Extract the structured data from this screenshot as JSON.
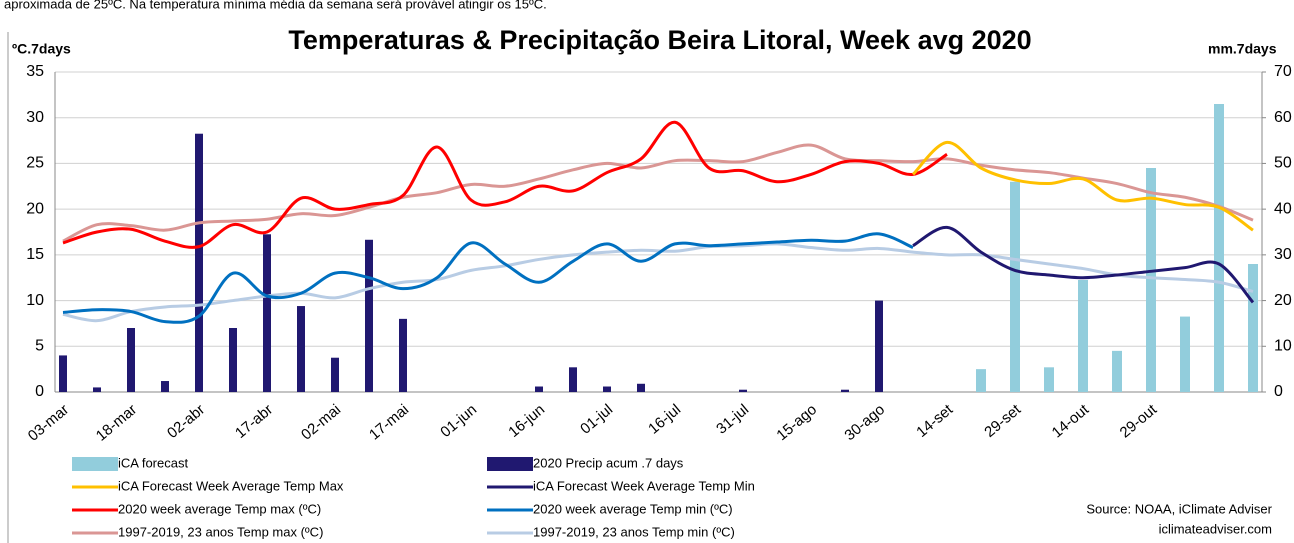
{
  "top_note": "aproximada de 25ºC. Na temperatura mínima média da semana será provável atingir os 15ºC.",
  "chart_data": {
    "type": "combo",
    "title": "Temperaturas & Precipitação Beira Litoral, Week avg 2020",
    "y_label": "ºC.7days",
    "y2_label": "mm.7days",
    "source": "Source: NOAA, iClimate Adviser",
    "website": "iclimateadviser.com",
    "categories": [
      "03-mar",
      null,
      "18-mar",
      null,
      "02-abr",
      null,
      "17-abr",
      null,
      "02-mai",
      null,
      "17-mai",
      null,
      "01-jun",
      null,
      "16-jun",
      null,
      "01-jul",
      null,
      "16-jul",
      null,
      "31-jul",
      null,
      "15-ago",
      null,
      "30-ago",
      null,
      "14-set",
      null,
      "29-set",
      null,
      "14-out",
      null,
      "29-out",
      null,
      null,
      null
    ],
    "ylim": [
      0,
      35
    ],
    "yticks": [
      0,
      5,
      10,
      15,
      20,
      25,
      30,
      35
    ],
    "y2lim": [
      0,
      70
    ],
    "y2ticks": [
      0,
      10,
      20,
      30,
      40,
      50,
      60,
      70
    ],
    "grid": true,
    "series": [
      {
        "name": "iCA forecast",
        "type": "bar",
        "axis": "y2",
        "color": "#92cddc",
        "values": [
          null,
          null,
          null,
          null,
          null,
          null,
          null,
          null,
          null,
          null,
          null,
          null,
          null,
          null,
          null,
          null,
          null,
          null,
          null,
          null,
          null,
          null,
          null,
          null,
          null,
          null,
          null,
          5,
          46,
          5.4,
          24.5,
          9,
          49,
          16.5,
          63,
          28
        ]
      },
      {
        "name": "2020 Precip acum .7 days",
        "type": "bar",
        "axis": "y2",
        "color": "#201870",
        "values": [
          8,
          1,
          14,
          2.4,
          56.5,
          14,
          34.5,
          18.8,
          7.5,
          33.3,
          16,
          null,
          null,
          null,
          1.2,
          5.4,
          1.2,
          1.8,
          null,
          null,
          0.5,
          null,
          null,
          0.5,
          20,
          null,
          null,
          null,
          null,
          null,
          null,
          null,
          null,
          null,
          null,
          null
        ]
      },
      {
        "name": "iCA Forecast Week Average Temp Max",
        "type": "line",
        "color": "#ffc000",
        "values": [
          null,
          null,
          null,
          null,
          null,
          null,
          null,
          null,
          null,
          null,
          null,
          null,
          null,
          null,
          null,
          null,
          null,
          null,
          null,
          null,
          null,
          null,
          null,
          null,
          null,
          23.8,
          27.3,
          24.5,
          23.2,
          22.8,
          23.3,
          21,
          21.2,
          20.5,
          20.2,
          17.7
        ]
      },
      {
        "name": "iCA Forecast Week Average Temp Min",
        "type": "line",
        "color": "#201870",
        "values": [
          null,
          null,
          null,
          null,
          null,
          null,
          null,
          null,
          null,
          null,
          null,
          null,
          null,
          null,
          null,
          null,
          null,
          null,
          null,
          null,
          null,
          null,
          null,
          null,
          null,
          16,
          18,
          15.3,
          13.3,
          12.8,
          12.5,
          12.8,
          13.2,
          13.6,
          14,
          9.8
        ]
      },
      {
        "name": "2020 week average Temp max (ºC)",
        "type": "line",
        "color": "#ff0000",
        "values": [
          16.3,
          17.5,
          17.8,
          16.5,
          15.9,
          18.3,
          17.5,
          21.2,
          20,
          20.5,
          21.5,
          26.8,
          21,
          20.8,
          22.5,
          22,
          24,
          25.5,
          29.5,
          24.5,
          24.2,
          23,
          23.8,
          25.2,
          25,
          23.8,
          26,
          null,
          null,
          null,
          null,
          null,
          null,
          null,
          null,
          null
        ]
      },
      {
        "name": "2020 week average Temp min (ºC)",
        "type": "line",
        "color": "#0070c0",
        "values": [
          8.7,
          9,
          8.8,
          7.7,
          8.3,
          13,
          10.5,
          10.8,
          13,
          12.5,
          11.3,
          12.5,
          16.3,
          14,
          12,
          14.3,
          16.2,
          14.3,
          16.2,
          16,
          16.2,
          16.4,
          16.6,
          16.5,
          17.3,
          15.8,
          null,
          null,
          null,
          null,
          null,
          null,
          null,
          null,
          null,
          null
        ]
      },
      {
        "name": "1997-2019, 23 anos Temp max (ºC)",
        "type": "line",
        "color": "#da9694",
        "values": [
          16.5,
          18.3,
          18.2,
          17.7,
          18.5,
          18.7,
          18.9,
          19.5,
          19.3,
          20.2,
          21.3,
          21.8,
          22.7,
          22.5,
          23.3,
          24.3,
          25,
          24.5,
          25.3,
          25.3,
          25.2,
          26.2,
          27,
          25.5,
          25.3,
          25.2,
          25.5,
          24.8,
          24.3,
          24,
          23.4,
          22.8,
          21.8,
          21.3,
          20.3,
          18.8
        ]
      },
      {
        "name": "1997-2019, 23 anos Temp min (ºC)",
        "type": "line",
        "color": "#b8cce4",
        "values": [
          8.5,
          7.8,
          8.8,
          9.3,
          9.5,
          10,
          10.5,
          10.8,
          10.3,
          11.3,
          12,
          12.3,
          13.3,
          13.8,
          14.5,
          15,
          15.3,
          15.5,
          15.4,
          15.9,
          16,
          16.2,
          15.8,
          15.5,
          15.7,
          15.3,
          15,
          15,
          14.5,
          14,
          13.5,
          12.8,
          12.5,
          12.3,
          12,
          11
        ]
      }
    ]
  }
}
